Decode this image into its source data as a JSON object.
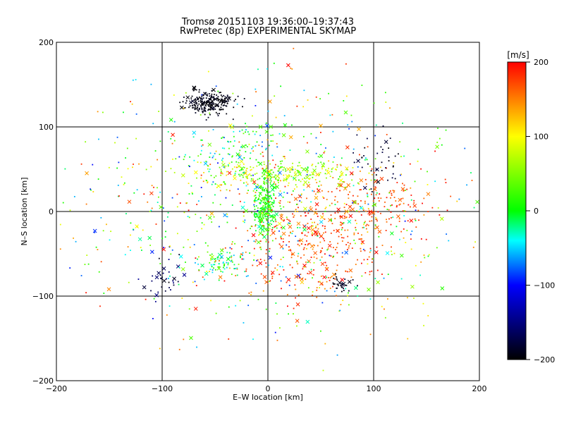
{
  "chart_data": {
    "type": "scatter",
    "title": "Tromsø 20151103 19:36:00–19:37:43",
    "subtitle": "RwPretec (8p) EXPERIMENTAL SKYMAP",
    "xlabel": "E–W location [km]",
    "ylabel": "N–S location [km]",
    "xlim": [
      -200,
      200
    ],
    "ylim": [
      -200,
      200
    ],
    "xticks": [
      "−200",
      "−100",
      "0",
      "100",
      "200"
    ],
    "yticks": [
      "−200",
      "−100",
      "0",
      "100",
      "200"
    ],
    "grid": true,
    "colorbar": {
      "label": "[m/s]",
      "range": [
        -200,
        200
      ],
      "ticks": [
        "200",
        "100",
        "0",
        "−100",
        "−200"
      ],
      "colors": [
        "#ff0000",
        "#ffff00",
        "#00ff00",
        "#00ffff",
        "#0000ff",
        "#000000"
      ]
    },
    "marker_types": [
      "dot",
      "x"
    ],
    "clusters": [
      {
        "cx": -55,
        "cy": 128,
        "sx": 12,
        "sy": 7,
        "n": 220,
        "vmin": -200,
        "vmax": -185
      },
      {
        "cx": -3,
        "cy": 5,
        "sx": 6,
        "sy": 18,
        "n": 260,
        "vmin": -20,
        "vmax": 40
      },
      {
        "cx": 5,
        "cy": 45,
        "sx": 40,
        "sy": 8,
        "n": 240,
        "vmin": 10,
        "vmax": 120
      },
      {
        "cx": 40,
        "cy": -35,
        "sx": 35,
        "sy": 30,
        "n": 320,
        "vmin": 140,
        "vmax": 200
      },
      {
        "cx": 110,
        "cy": 5,
        "sx": 25,
        "sy": 18,
        "n": 120,
        "vmin": 150,
        "vmax": 200
      },
      {
        "cx": -45,
        "cy": -60,
        "sx": 14,
        "sy": 8,
        "n": 70,
        "vmin": -60,
        "vmax": 40
      },
      {
        "cx": 70,
        "cy": -85,
        "sx": 6,
        "sy": 6,
        "n": 30,
        "vmin": -200,
        "vmax": -180
      },
      {
        "cx": -100,
        "cy": -80,
        "sx": 8,
        "sy": 10,
        "n": 35,
        "vmin": -200,
        "vmax": -140
      },
      {
        "cx": -20,
        "cy": 75,
        "sx": 20,
        "sy": 15,
        "n": 80,
        "vmin": -80,
        "vmax": 40
      },
      {
        "cx": 105,
        "cy": 60,
        "sx": 12,
        "sy": 20,
        "n": 40,
        "vmin": -200,
        "vmax": -170
      },
      {
        "cx": 0,
        "cy": 0,
        "sx": 110,
        "sy": 75,
        "n": 900,
        "vmin": -100,
        "vmax": 200
      }
    ]
  }
}
